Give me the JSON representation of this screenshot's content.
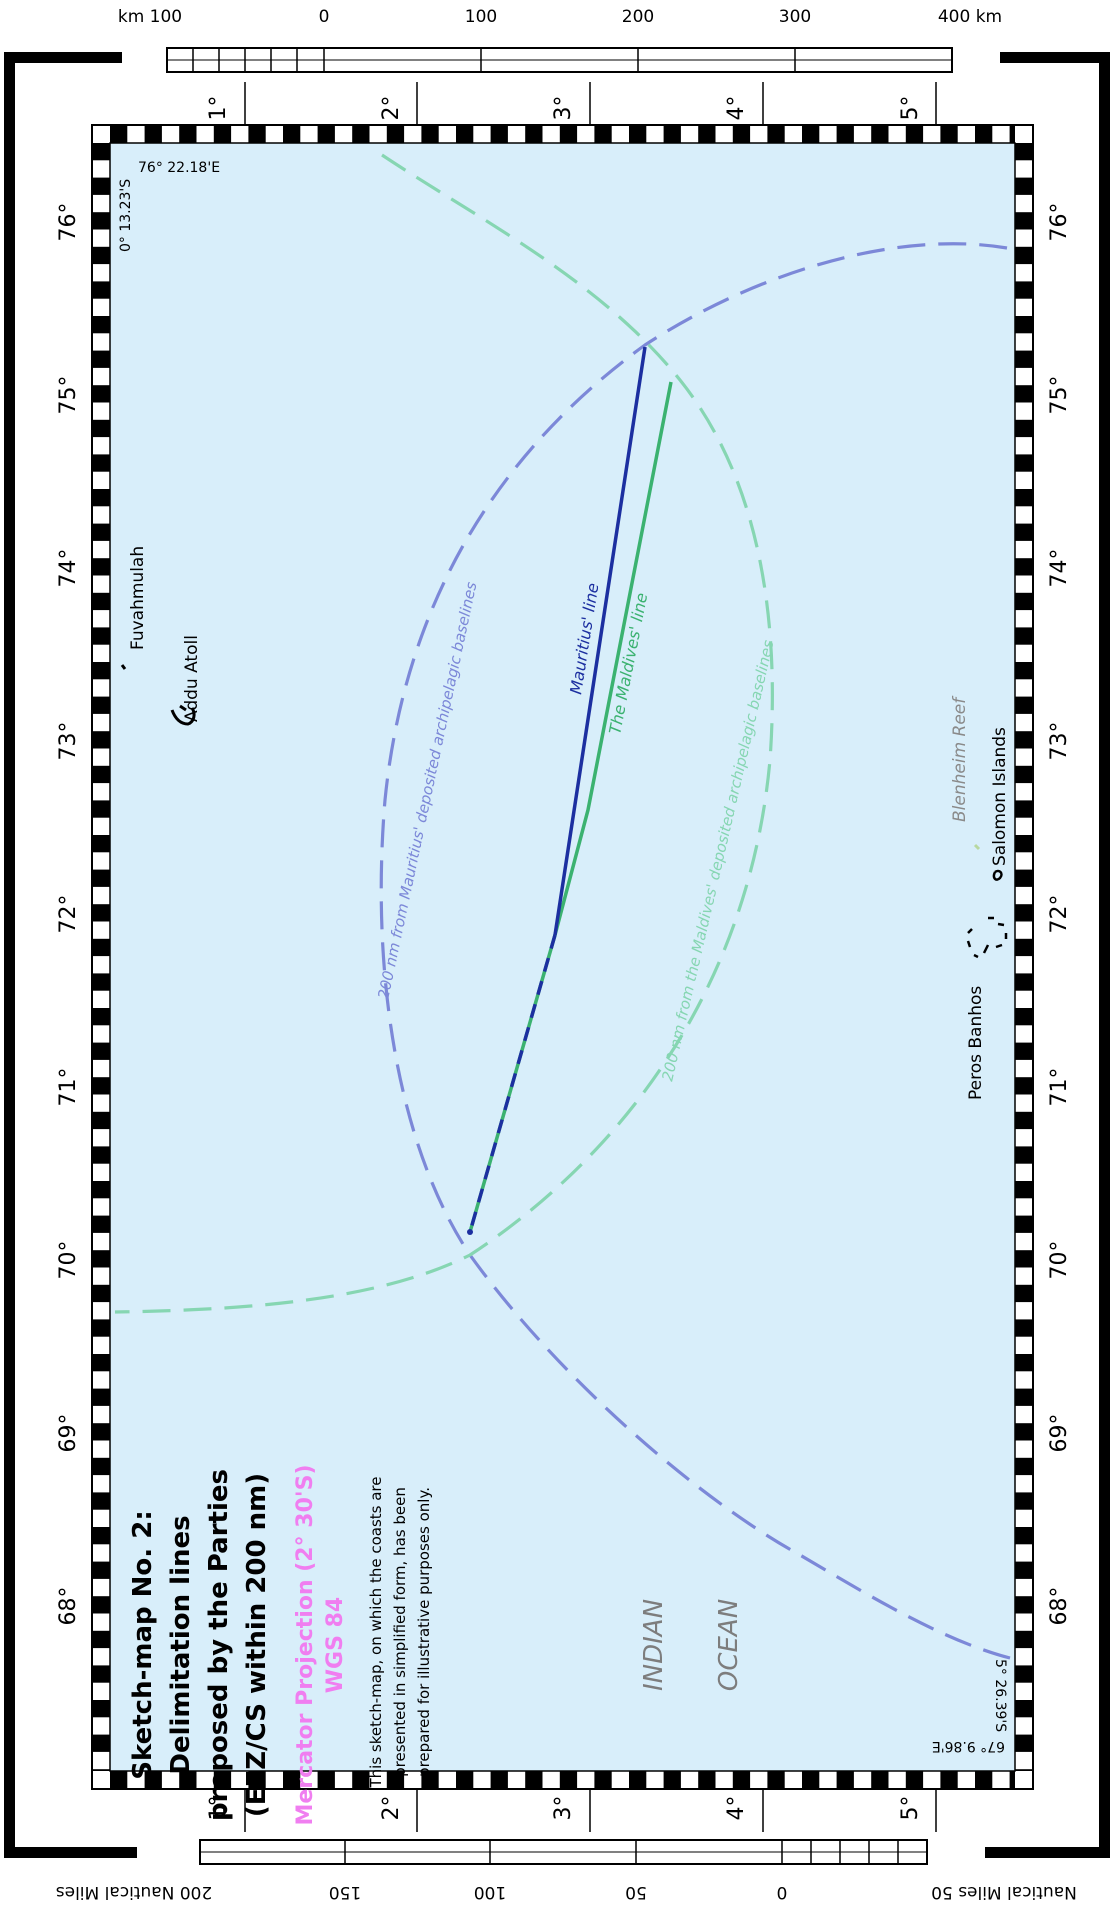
{
  "title": {
    "line1": "Sketch-map No. 2:",
    "line2": "Delimitation lines",
    "line3": "proposed by the Parties",
    "line4": "(EEZ/CS within 200 nm)"
  },
  "projection": {
    "line1": "Mercator Projection (2° 30'S)",
    "line2": "WGS 84"
  },
  "disclaimer": {
    "line1": "This sketch-map, on which the coasts are",
    "line2": "presented in simplified form, has been",
    "line3": "prepared for illustrative purposes only."
  },
  "corner_coords": {
    "top_lon": "76° 22.18'E",
    "top_lat": "0° 13.23'S",
    "bottom_lon": "67° 9.86'E",
    "bottom_lat": "5° 26.39'S"
  },
  "scale_km": {
    "labels": [
      "km 100",
      "0",
      "100",
      "200",
      "300",
      "400 km"
    ]
  },
  "scale_nm": {
    "labels": [
      "200 Nautical Miles",
      "150",
      "100",
      "50",
      "0",
      "Nautical Miles 50"
    ]
  },
  "latitude_labels": [
    "1°",
    "2°",
    "3°",
    "4°",
    "5°"
  ],
  "longitude_labels": [
    "76°",
    "75°",
    "74°",
    "73°",
    "72°",
    "71°",
    "70°",
    "69°",
    "68°"
  ],
  "places": {
    "fuvahmulah": "Fuvahmulah",
    "addu": "Addu Atoll",
    "blenheim": "Blenheim Reef",
    "salomon": "Salomon Islands",
    "peros": "Peros Banhos"
  },
  "ocean": {
    "word1": "INDIAN",
    "word2": "OCEAN"
  },
  "lines": {
    "mauritius": "Mauritius' line",
    "maldives": "The Maldives' line",
    "arc_mauritius": "200 nm from Mauritius' deposited archipelagic baselines",
    "arc_maldives": "200 nm from the Maldives' deposited archipelagic baselines"
  },
  "colors": {
    "sea": "#d8eefa",
    "mauritius_line": "#1c2fa0",
    "maldives_line": "#3bb270",
    "mauritius_arc": "#7c88d8",
    "maldives_arc": "#86d6b2",
    "projection_text": "#f07ef0",
    "blenheim_text": "#8a8a8a",
    "ocean_text": "#7d7d7d"
  }
}
